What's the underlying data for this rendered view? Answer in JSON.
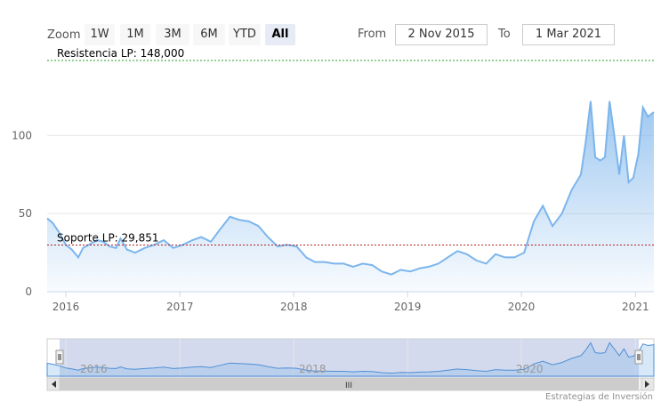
{
  "range_selector": {
    "zoom_label": "Zoom",
    "buttons": [
      "1W",
      "1M",
      "3M",
      "6M",
      "YTD",
      "All"
    ],
    "active": "All",
    "from_label": "From",
    "from_value": "2 Nov 2015",
    "to_label": "To",
    "to_value": "1 Mar 2021"
  },
  "credit": "Estrategias de Inversión",
  "navigator": {
    "labels": [
      "2016",
      "2018",
      "2020"
    ],
    "scrollbar_grip": "III"
  },
  "colors": {
    "line": "#7cb5ec",
    "resistance": "#2e9e2e",
    "support": "#b22222",
    "grid": "#e6e6e6"
  },
  "chart_data": {
    "type": "area",
    "title": "",
    "xlabel": "",
    "ylabel": "",
    "x_range": [
      "2015-11-02",
      "2021-03-01"
    ],
    "ylim": [
      0,
      148
    ],
    "yticks": [
      0,
      50,
      100
    ],
    "xticks": [
      "2016",
      "2017",
      "2018",
      "2019",
      "2020",
      "2021"
    ],
    "grid": true,
    "plot_lines": [
      {
        "label": "Resistencia LP: 148,000",
        "value": 148.0
      },
      {
        "label": "Soporte LP: 29,851",
        "value": 29.851
      }
    ],
    "series": [
      {
        "x": [
          "2015-11-02",
          "2015-11-20",
          "2015-12-10",
          "2016-01-01",
          "2016-01-20",
          "2016-02-10",
          "2016-02-25",
          "2016-03-15",
          "2016-04-10",
          "2016-05-01",
          "2016-05-20",
          "2016-06-10",
          "2016-06-24",
          "2016-07-15",
          "2016-08-10",
          "2016-09-10",
          "2016-10-10",
          "2016-11-10",
          "2016-12-10",
          "2017-01-10",
          "2017-02-10",
          "2017-03-10",
          "2017-04-10",
          "2017-05-10",
          "2017-06-10",
          "2017-07-10",
          "2017-08-10",
          "2017-09-10",
          "2017-10-10",
          "2017-11-10",
          "2017-12-10",
          "2018-01-10",
          "2018-02-10",
          "2018-03-10",
          "2018-04-10",
          "2018-05-10",
          "2018-06-10",
          "2018-07-10",
          "2018-08-10",
          "2018-09-10",
          "2018-10-10",
          "2018-11-10",
          "2018-12-10",
          "2019-01-10",
          "2019-02-10",
          "2019-03-10",
          "2019-04-10",
          "2019-05-10",
          "2019-06-10",
          "2019-07-10",
          "2019-08-10",
          "2019-09-10",
          "2019-10-10",
          "2019-11-10",
          "2019-12-10",
          "2020-01-10",
          "2020-02-10",
          "2020-03-10",
          "2020-04-10",
          "2020-05-10",
          "2020-06-10",
          "2020-07-10",
          "2020-07-25",
          "2020-08-10",
          "2020-08-25",
          "2020-09-10",
          "2020-09-25",
          "2020-10-10",
          "2020-10-25",
          "2020-11-10",
          "2020-11-25",
          "2020-12-10",
          "2020-12-25",
          "2021-01-10",
          "2021-01-25",
          "2021-02-10",
          "2021-03-01"
        ],
        "values": [
          47,
          44,
          38,
          30,
          27,
          22,
          28,
          30,
          33,
          32,
          29,
          28,
          34,
          27,
          25,
          28,
          30,
          33,
          28,
          30,
          33,
          35,
          32,
          40,
          48,
          46,
          45,
          42,
          35,
          29,
          30,
          29,
          22,
          19,
          19,
          18,
          18,
          16,
          18,
          17,
          13,
          11,
          14,
          13,
          15,
          16,
          18,
          22,
          26,
          24,
          20,
          18,
          24,
          22,
          22,
          25,
          45,
          55,
          42,
          50,
          65,
          75,
          95,
          122,
          86,
          84,
          86,
          122,
          100,
          75,
          100,
          70,
          73,
          88,
          118,
          112,
          115
        ]
      }
    ]
  }
}
